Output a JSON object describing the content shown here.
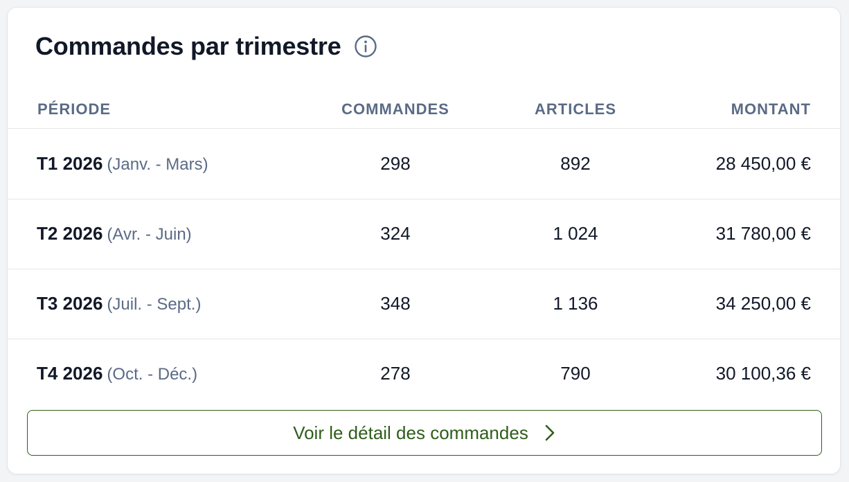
{
  "card": {
    "title": "Commandes par trimestre",
    "info_icon": "info-icon"
  },
  "table": {
    "headers": {
      "period": "PÉRIODE",
      "orders": "COMMANDES",
      "items": "ARTICLES",
      "amount": "MONTANT"
    },
    "rows": [
      {
        "period": "T1 2026",
        "range": "(Janv. - Mars)",
        "orders": "298",
        "items": "892",
        "amount": "28 450,00 €"
      },
      {
        "period": "T2 2026",
        "range": "(Avr. - Juin)",
        "orders": "324",
        "items": "1 024",
        "amount": "31 780,00 €"
      },
      {
        "period": "T3 2026",
        "range": "(Juil. - Sept.)",
        "orders": "348",
        "items": "1 136",
        "amount": "34 250,00 €"
      },
      {
        "period": "T4 2026",
        "range": "(Oct. - Déc.)",
        "orders": "278",
        "items": "790",
        "amount": "30 100,36 €"
      }
    ]
  },
  "footer": {
    "detail_button_label": "Voir le détail des commandes",
    "chevron_icon": "chevron-right-icon"
  },
  "colors": {
    "accent": "#2f5d1a",
    "header_text": "#5a6b85",
    "body_text": "#111827"
  }
}
